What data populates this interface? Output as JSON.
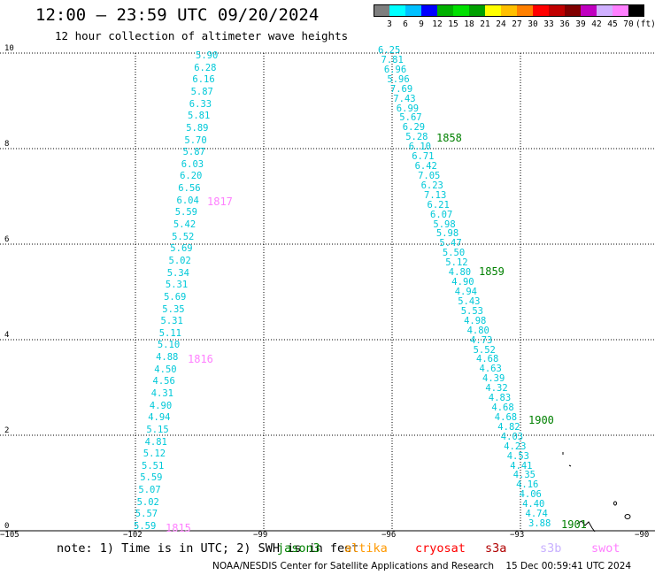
{
  "title": "12:00 — 23:59 UTC 09/20/2024",
  "subtitle": "12 hour collection of altimeter wave heights",
  "colorbar": {
    "ticks": [
      "3",
      "6",
      "9",
      "12",
      "15",
      "18",
      "21",
      "24",
      "27",
      "30",
      "33",
      "36",
      "39",
      "42",
      "45",
      "70"
    ],
    "colors": [
      "#7f7f7f",
      "#00ffff",
      "#00c0ff",
      "#0000ff",
      "#00b000",
      "#00e000",
      "#00a000",
      "#ffff00",
      "#ffc000",
      "#ff8000",
      "#ff0000",
      "#c00000",
      "#800000",
      "#c000c0",
      "#d0b0ff",
      "#ff80ff",
      "#000000"
    ],
    "unit": "(ft)"
  },
  "axes": {
    "y_ticks": [
      "0",
      "2",
      "4",
      "6",
      "8",
      "10"
    ],
    "x_ticks": [
      "−105",
      "−102",
      "−99",
      "−96",
      "−93",
      "−90"
    ]
  },
  "tracks": {
    "left": [
      "5.90",
      "6.28",
      "6.16",
      "5.87",
      "6.33",
      "5.81",
      "5.89",
      "5.70",
      "5.87",
      "6.03",
      "6.20",
      "6.56",
      "6.04",
      "5.59",
      "5.42",
      "5.52",
      "5.69",
      "5.02",
      "5.34",
      "5.31",
      "5.69",
      "5.35",
      "5.31",
      "5.11",
      "5.10",
      "4.88",
      "4.50",
      "4.56",
      "4.31",
      "4.90",
      "4.94",
      "5.15",
      "4.81",
      "5.12",
      "5.51",
      "5.59",
      "5.07",
      "5.02",
      "5.57",
      "5.59"
    ],
    "right": [
      "6.25",
      "7.81",
      "6.96",
      "5.96",
      "7.69",
      "7.43",
      "6.99",
      "5.67",
      "6.29",
      "5.28",
      "6.10",
      "6.71",
      "6.42",
      "7.05",
      "6.23",
      "7.13",
      "6.21",
      "6.07",
      "5.98",
      "5.98",
      "5.47",
      "5.50",
      "5.12",
      "4.80",
      "4.90",
      "4.94",
      "5.43",
      "5.53",
      "4.98",
      "4.80",
      "4.73",
      "5.52",
      "4.68",
      "4.63",
      "4.39",
      "4.32",
      "4.83",
      "4.68",
      "4.68",
      "4.82",
      "4.03",
      "4.23",
      "4.53",
      "4.41",
      "4.35",
      "4.16",
      "4.06",
      "4.40",
      "4.74",
      "3.88"
    ]
  },
  "pass_labels": {
    "p1817": "1817",
    "p1816": "1816",
    "p1815": "1815",
    "p1858": "1858",
    "p1859": "1859",
    "p1900": "1900",
    "p1901": "1901"
  },
  "footer": {
    "note": "note: 1) Time is in UTC; 2) SWH is in feet",
    "satellites": [
      {
        "name": "jason3",
        "color": "#008000"
      },
      {
        "name": "altika",
        "color": "#ff9900"
      },
      {
        "name": "cryosat",
        "color": "#ff0000"
      },
      {
        "name": "s3a",
        "color": "#b00000"
      },
      {
        "name": "s3b",
        "color": "#c8b0ff"
      },
      {
        "name": "swot",
        "color": "#ff80ff"
      }
    ],
    "credit": "NOAA/NESDIS Center for Satellite Applications and Research    15 Dec 00:59:41 UTC 2024"
  }
}
